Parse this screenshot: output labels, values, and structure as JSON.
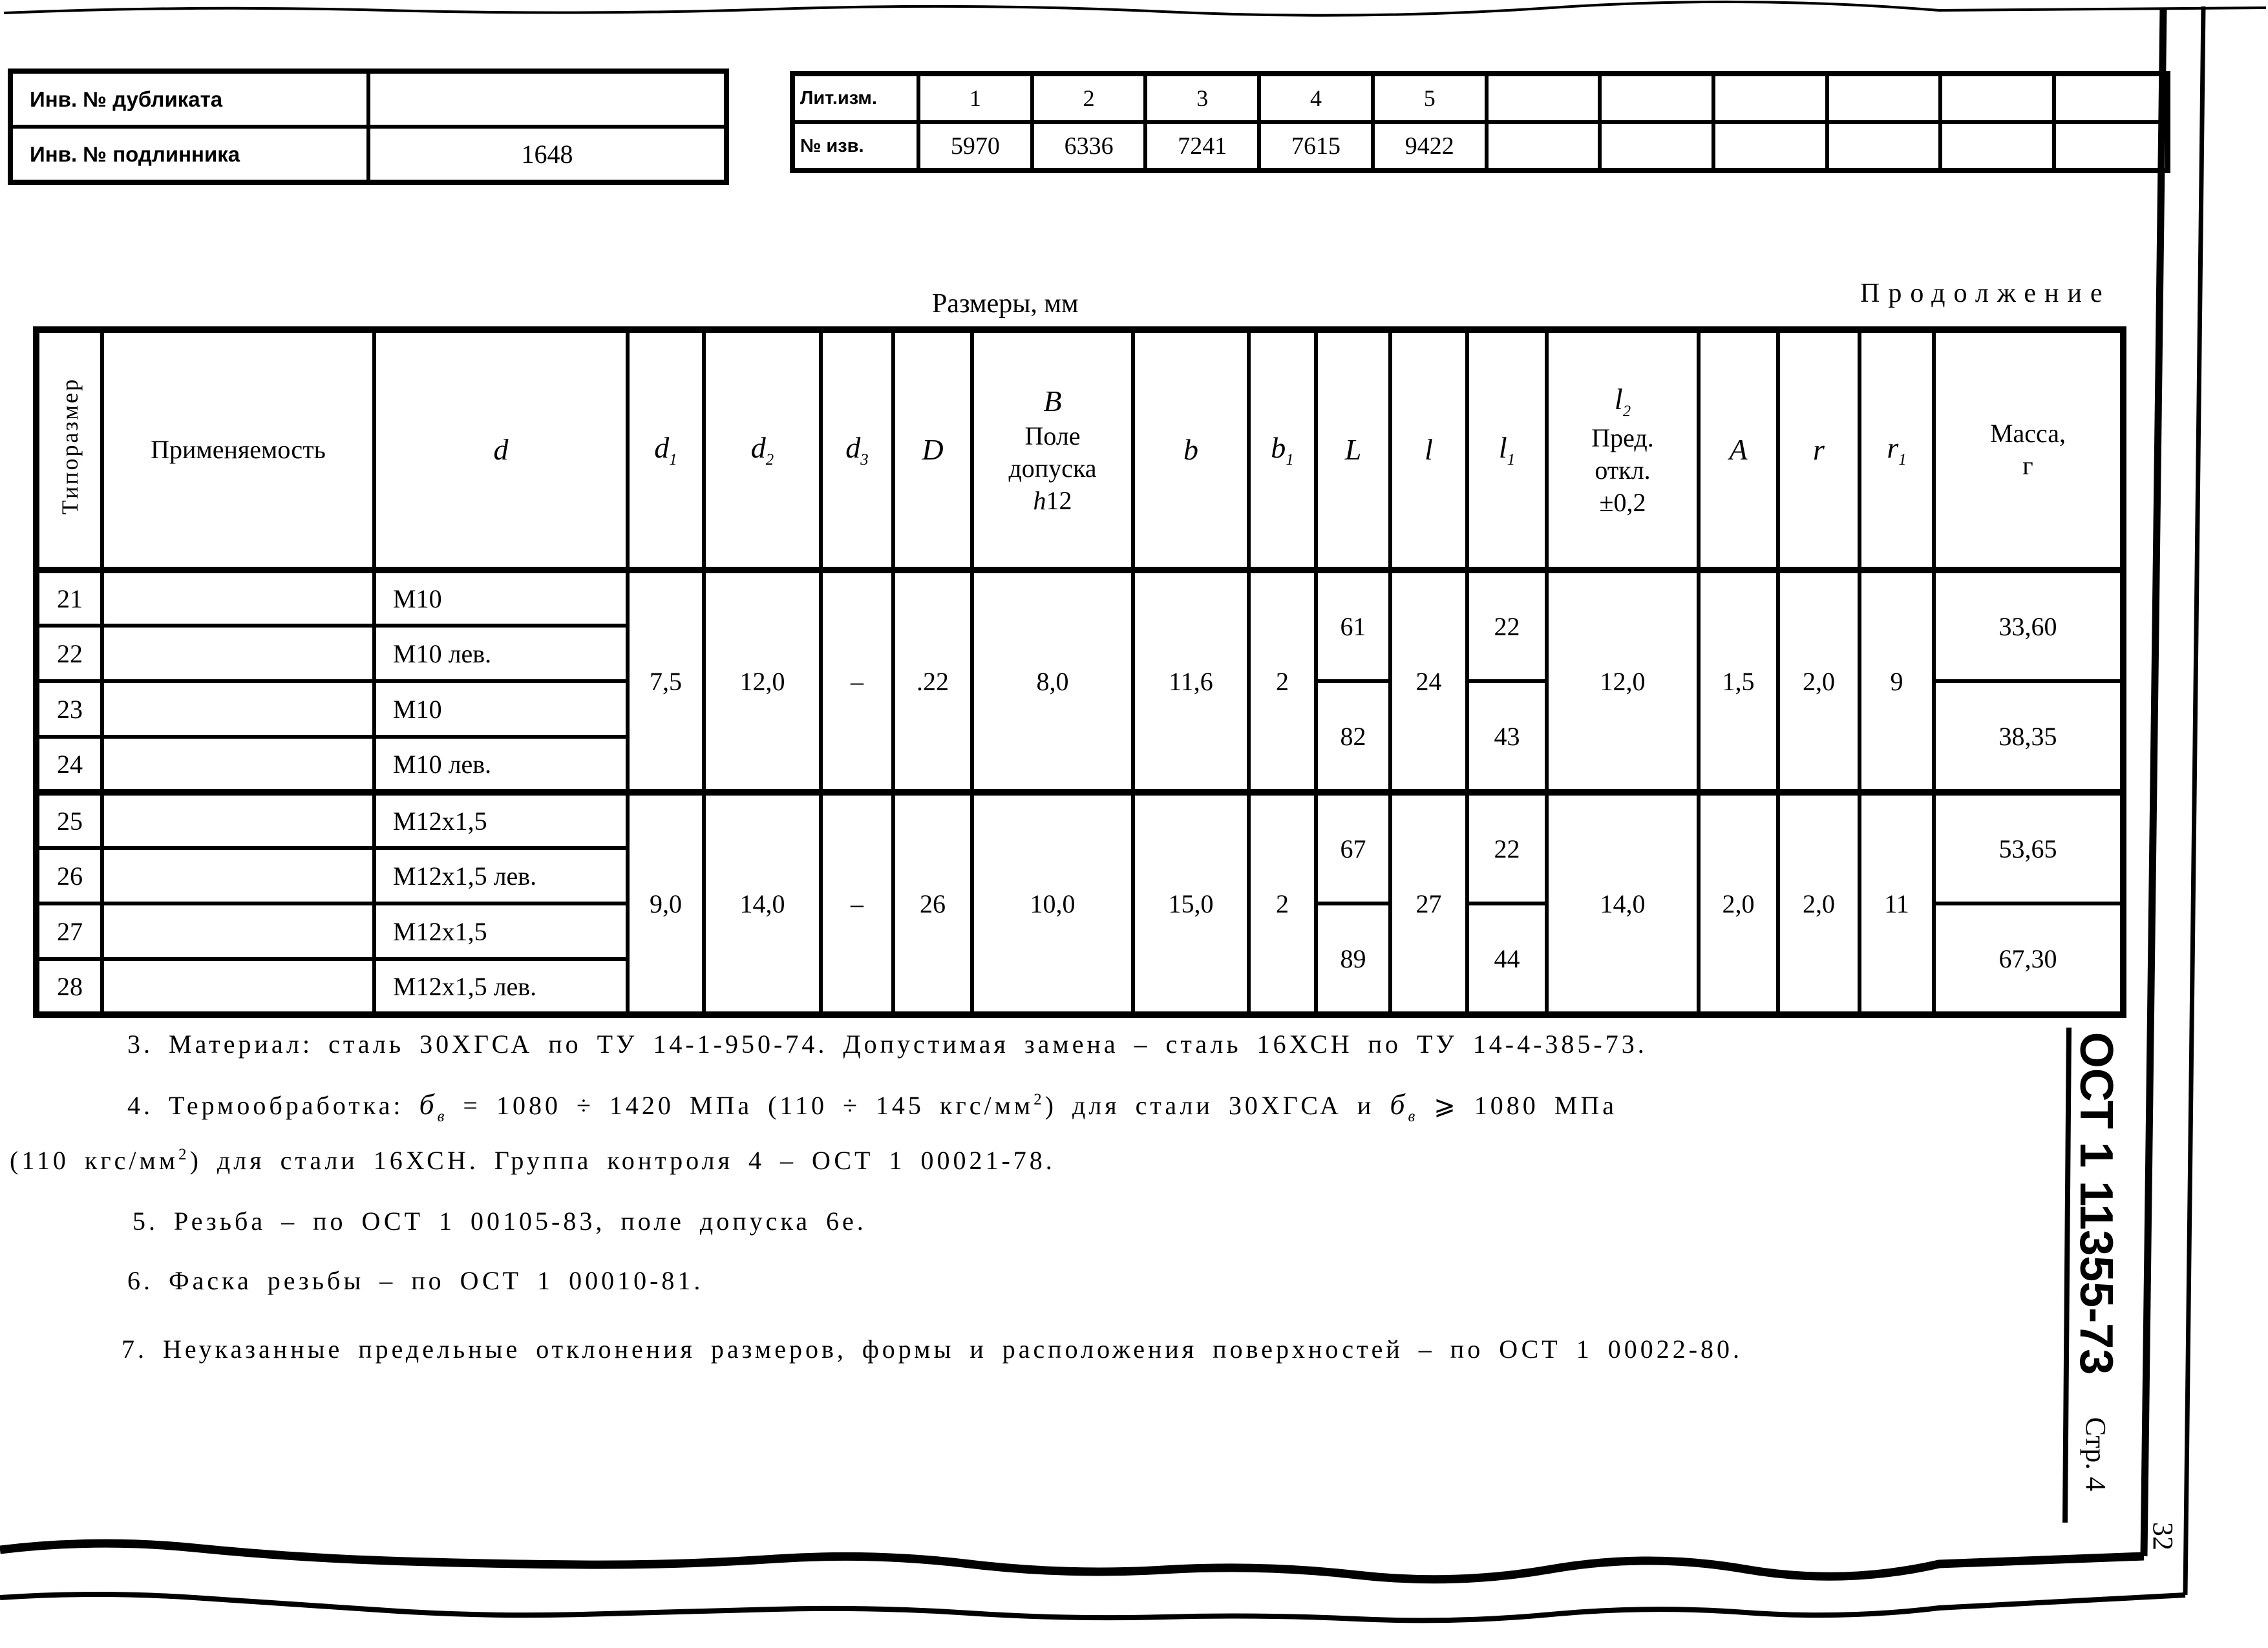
{
  "page": {
    "inv_table": {
      "rows": [
        {
          "label": "Инв. № дубликата",
          "value": ""
        },
        {
          "label": "Инв. № подлинника",
          "value": "1648"
        }
      ]
    },
    "rev_table": {
      "row1_label": "Лит.изм.",
      "row2_label": "№ изв.",
      "cols": [
        {
          "num": "1",
          "izv": "5970"
        },
        {
          "num": "2",
          "izv": "6336"
        },
        {
          "num": "3",
          "izv": "7241"
        },
        {
          "num": "4",
          "izv": "7615"
        },
        {
          "num": "5",
          "izv": "9422"
        },
        {
          "num": "",
          "izv": ""
        },
        {
          "num": "",
          "izv": ""
        },
        {
          "num": "",
          "izv": ""
        },
        {
          "num": "",
          "izv": ""
        },
        {
          "num": "",
          "izv": ""
        },
        {
          "num": "",
          "izv": ""
        }
      ]
    },
    "continuation": "Продолжение",
    "table_title": "Размеры, мм",
    "doc_number": "ОСТ 1 11355-73",
    "page_label": "Стр. 4",
    "sheet_number": "32"
  },
  "main_table": {
    "headers": {
      "tiporazmer": "Типоразмер",
      "primenyaemost": "Применяемость",
      "d": [
        {
          "t": "d",
          "c": "it big"
        }
      ],
      "d1": [
        {
          "t": "d",
          "c": "it big"
        },
        {
          "t": "1",
          "c": "it sb"
        }
      ],
      "d2": [
        {
          "t": "d",
          "c": "it big"
        },
        {
          "t": "2",
          "c": "it sb"
        }
      ],
      "d3": [
        {
          "t": "d",
          "c": "it big"
        },
        {
          "t": "3",
          "c": "it sb"
        }
      ],
      "D": [
        {
          "t": "D",
          "c": "it big"
        }
      ],
      "B": [
        {
          "t": "В",
          "c": "it big"
        },
        {
          "t": "Поле",
          "br": 1
        },
        {
          "t": "допуска",
          "br": 1
        },
        {
          "t": "h",
          "c": "it",
          "br": 1
        },
        {
          "t": "12"
        }
      ],
      "b": [
        {
          "t": "b",
          "c": "it big"
        }
      ],
      "b1": [
        {
          "t": "b",
          "c": "it big"
        },
        {
          "t": "1",
          "c": "it sb"
        }
      ],
      "L": [
        {
          "t": "L",
          "c": "it big"
        }
      ],
      "l": [
        {
          "t": "l",
          "c": "it big"
        }
      ],
      "l1": [
        {
          "t": "l",
          "c": "it big"
        },
        {
          "t": "1",
          "c": "it sb"
        }
      ],
      "l2": [
        {
          "t": "l",
          "c": "it big"
        },
        {
          "t": "2",
          "c": "it sb"
        },
        {
          "t": "Пред.",
          "br": 1
        },
        {
          "t": "откл.",
          "br": 1
        },
        {
          "t": "±0,2",
          "br": 1
        }
      ],
      "A": [
        {
          "t": "A",
          "c": "it big"
        }
      ],
      "r": [
        {
          "t": "r",
          "c": "it big"
        }
      ],
      "r1": [
        {
          "t": "r",
          "c": "it big"
        },
        {
          "t": "1",
          "c": "it sb"
        }
      ],
      "massa": [
        {
          "t": "Масса,"
        },
        {
          "t": "г",
          "br": 1
        }
      ]
    },
    "rows": [
      {
        "num": "21",
        "app": "",
        "d": "М10"
      },
      {
        "num": "22",
        "app": "",
        "d": "М10 лев."
      },
      {
        "num": "23",
        "app": "",
        "d": "М10"
      },
      {
        "num": "24",
        "app": "",
        "d": "М10 лев."
      },
      {
        "num": "25",
        "app": "",
        "d": "М12х1,5"
      },
      {
        "num": "26",
        "app": "",
        "d": "М12х1,5 лев."
      },
      {
        "num": "27",
        "app": "",
        "d": "М12х1,5"
      },
      {
        "num": "28",
        "app": "",
        "d": "М12х1,5 лев."
      }
    ],
    "g1": {
      "d1": "7,5",
      "d2": "12,0",
      "d3": "–",
      "D": ".22",
      "B": "8,0",
      "b": "11,6",
      "b1": "2",
      "L1": "61",
      "L2": "82",
      "l": "24",
      "l11": "22",
      "l12": "43",
      "l2": "12,0",
      "A": "1,5",
      "r": "2,0",
      "r1": "9",
      "m1": "33,60",
      "m2": "38,35"
    },
    "g2": {
      "d1": "9,0",
      "d2": "14,0",
      "d3": "–",
      "D": "26",
      "B": "10,0",
      "b": "15,0",
      "b1": "2",
      "L1": "67",
      "L2": "89",
      "l": "27",
      "l11": "22",
      "l12": "44",
      "l2": "14,0",
      "A": "2,0",
      "r": "2,0",
      "r1": "11",
      "m1": "53,65",
      "m2": "67,30"
    }
  },
  "notes": {
    "n3": [
      {
        "t": "3. Материал: сталь 30ХГСА по ТУ 14-1-950-74. Допустимая замена – сталь 16ХСН по ТУ 14-4-385-73."
      }
    ],
    "n4a": [
      {
        "t": "4. Термообработка: "
      },
      {
        "t": "б",
        "c": "it big"
      },
      {
        "t": "в",
        "c": "it sb"
      },
      {
        "t": " = 1080 ÷ 1420 МПа (110 ÷ 145 кгс/мм"
      },
      {
        "t": "2",
        "c": "sp"
      },
      {
        "t": ") для стали 30ХГСА и "
      },
      {
        "t": "б",
        "c": "it big"
      },
      {
        "t": "в",
        "c": "it sb"
      },
      {
        "t": " ⩾ 1080 МПа"
      }
    ],
    "n4b": [
      {
        "t": "(110 кгс/мм"
      },
      {
        "t": "2",
        "c": "sp"
      },
      {
        "t": ") для стали 16ХСН. Группа контроля 4 – ОСТ 1 00021-78."
      }
    ],
    "n5": [
      {
        "t": "5. Резьба – по ОСТ 1 00105-83, поле допуска 6е."
      }
    ],
    "n6": [
      {
        "t": "6. Фаска резьбы – по ОСТ 1 00010-81."
      }
    ],
    "n7": [
      {
        "t": "7. Неуказанные предельные отклонения размеров, формы и расположения поверхностей – по ОСТ 1 00022-80."
      }
    ]
  }
}
